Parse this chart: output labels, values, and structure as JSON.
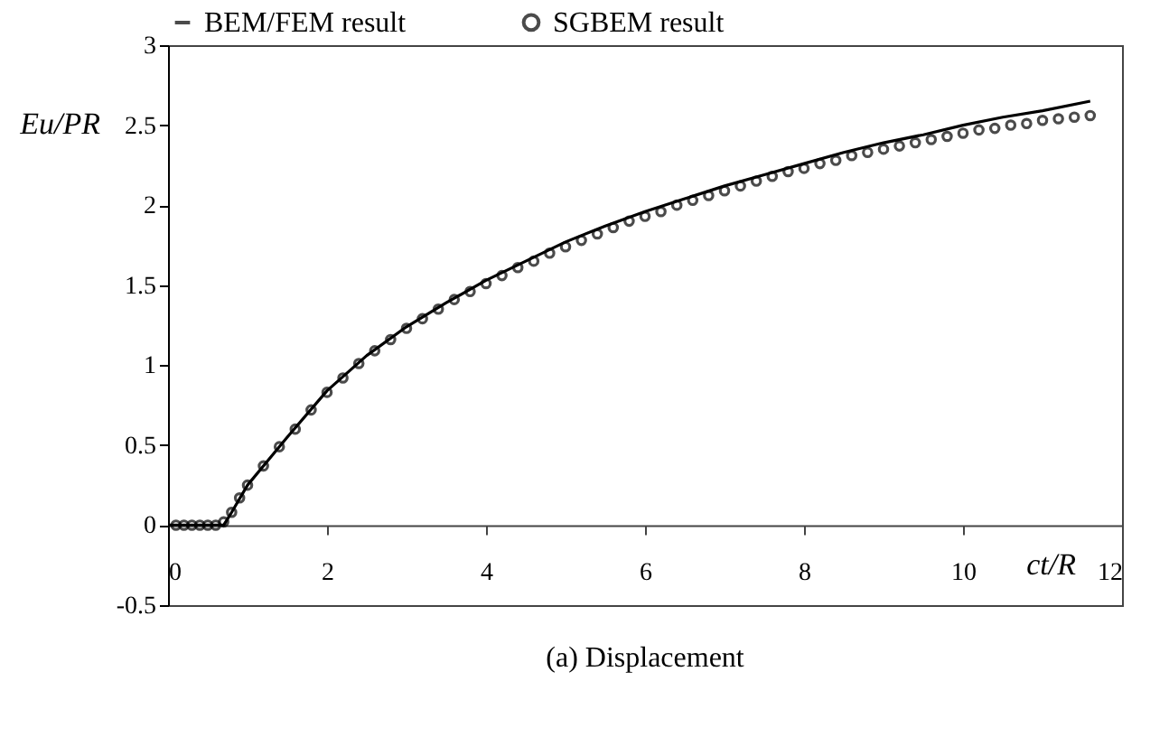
{
  "chart_data": {
    "type": "scatter",
    "xlabel": "ct/R",
    "ylabel": "Eu/PR",
    "annotations": [
      "(a) Displacement"
    ],
    "xlim": [
      0,
      12
    ],
    "ylim": [
      -0.5,
      3
    ],
    "xticks": [
      0,
      2,
      4,
      6,
      8,
      10,
      12
    ],
    "yticks": [
      -0.5,
      0,
      0.5,
      1,
      1.5,
      2,
      2.5,
      3
    ],
    "legend": "top",
    "series": [
      {
        "name": "BEM/FEM result",
        "type": "line",
        "marker": "none",
        "color": "#000000",
        "x": [
          0,
          0.7,
          0.8,
          1,
          1.5,
          2,
          2.5,
          3,
          3.5,
          4,
          4.5,
          5,
          5.5,
          6,
          6.5,
          7,
          7.5,
          8,
          8.5,
          9,
          9.5,
          10,
          10.5,
          11,
          11.6
        ],
        "values": [
          0,
          0,
          0.08,
          0.25,
          0.55,
          0.84,
          1.06,
          1.24,
          1.39,
          1.53,
          1.65,
          1.77,
          1.87,
          1.96,
          2.04,
          2.12,
          2.19,
          2.26,
          2.33,
          2.39,
          2.44,
          2.5,
          2.55,
          2.59,
          2.65
        ]
      },
      {
        "name": "SGBEM result",
        "marker": "circle",
        "color": "#000000",
        "x": [
          0.1,
          0.2,
          0.3,
          0.4,
          0.5,
          0.6,
          0.7,
          0.8,
          0.9,
          1.0,
          1.2,
          1.4,
          1.6,
          1.8,
          2.0,
          2.2,
          2.4,
          2.6,
          2.8,
          3.0,
          3.2,
          3.4,
          3.6,
          3.8,
          4.0,
          4.2,
          4.4,
          4.6,
          4.8,
          5.0,
          5.2,
          5.4,
          5.6,
          5.8,
          6.0,
          6.2,
          6.4,
          6.6,
          6.8,
          7.0,
          7.2,
          7.4,
          7.6,
          7.8,
          8.0,
          8.2,
          8.4,
          8.6,
          8.8,
          9.0,
          9.2,
          9.4,
          9.6,
          9.8,
          10.0,
          10.2,
          10.4,
          10.6,
          10.8,
          11.0,
          11.2,
          11.4,
          11.6
        ],
        "values": [
          0,
          0,
          0,
          0,
          0,
          0,
          0.02,
          0.08,
          0.17,
          0.25,
          0.37,
          0.49,
          0.6,
          0.72,
          0.83,
          0.92,
          1.01,
          1.09,
          1.16,
          1.23,
          1.29,
          1.35,
          1.41,
          1.46,
          1.51,
          1.56,
          1.61,
          1.65,
          1.7,
          1.74,
          1.78,
          1.82,
          1.86,
          1.9,
          1.93,
          1.96,
          2.0,
          2.03,
          2.06,
          2.09,
          2.12,
          2.15,
          2.18,
          2.21,
          2.23,
          2.26,
          2.28,
          2.31,
          2.33,
          2.35,
          2.37,
          2.39,
          2.41,
          2.43,
          2.45,
          2.47,
          2.48,
          2.5,
          2.51,
          2.53,
          2.54,
          2.55,
          2.56
        ]
      }
    ]
  }
}
